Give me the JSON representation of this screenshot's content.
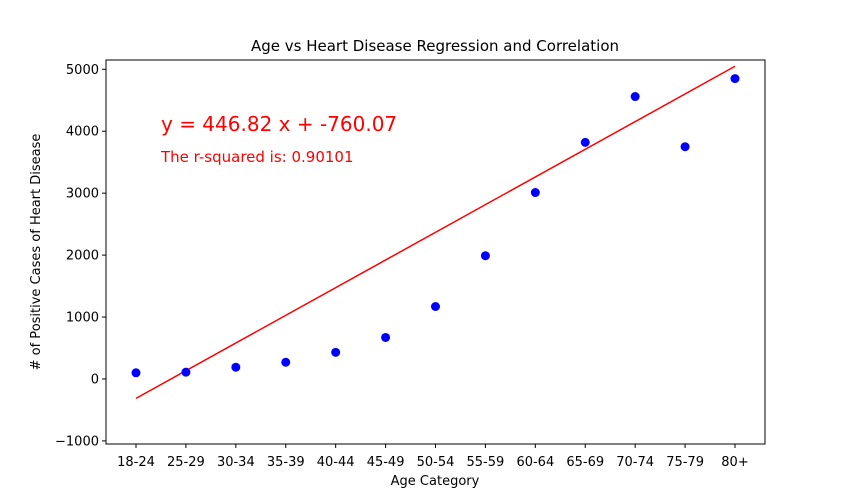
{
  "chart_data": {
    "type": "scatter",
    "title": "Age vs Heart Disease Regression and Correlation",
    "xlabel": "Age Category",
    "ylabel": "# of Positive Cases of Heart Disease",
    "categories": [
      "18-24",
      "25-29",
      "30-34",
      "35-39",
      "40-44",
      "45-49",
      "50-54",
      "55-59",
      "60-64",
      "65-69",
      "70-74",
      "75-79",
      "80+"
    ],
    "values": [
      100,
      110,
      190,
      270,
      430,
      670,
      1170,
      1990,
      3010,
      3820,
      4560,
      3750,
      4850
    ],
    "point_color": "#0000ff",
    "regression": {
      "slope": 446.82,
      "intercept": -760.07,
      "color": "#ff0000",
      "equation_label": "y = 446.82 x + -760.07",
      "r_squared_label": "The r-squared is: 0.90101"
    },
    "ylim": [
      -1050,
      5150
    ],
    "yticks": [
      -1000,
      0,
      1000,
      2000,
      3000,
      4000,
      5000
    ],
    "ytick_labels": [
      "−1000",
      "0",
      "1000",
      "2000",
      "3000",
      "4000",
      "5000"
    ],
    "grid": false,
    "legend": "none"
  }
}
